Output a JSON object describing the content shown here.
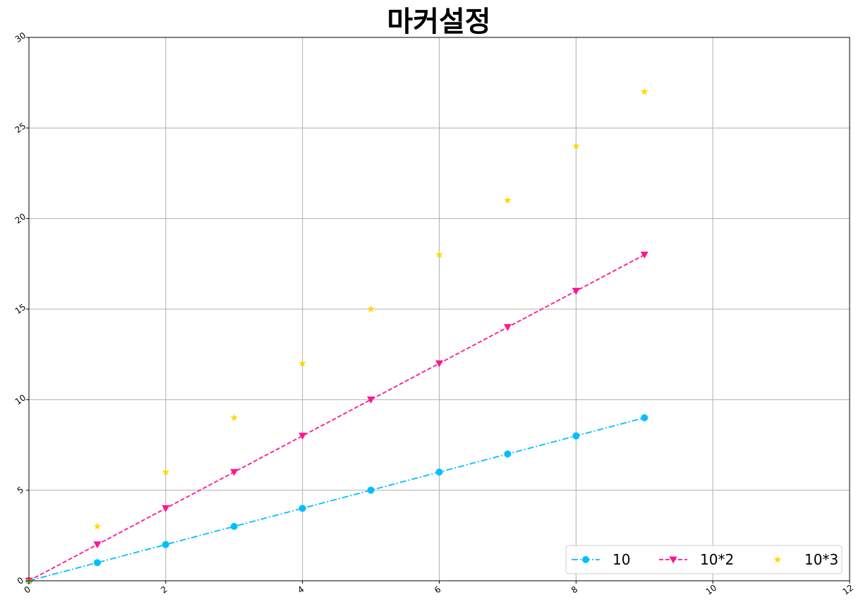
{
  "chart_data": {
    "type": "line",
    "title": "마커설정",
    "xlabel": "",
    "ylabel": "",
    "xlim": [
      0,
      12
    ],
    "ylim": [
      0,
      30
    ],
    "xticks": [
      0,
      2,
      4,
      6,
      8,
      10,
      12
    ],
    "yticks": [
      0,
      5,
      10,
      15,
      20,
      25,
      30
    ],
    "grid": true,
    "legend": {
      "placement": "bottom-right",
      "columns": 3
    },
    "x": [
      0,
      1,
      2,
      3,
      4,
      5,
      6,
      7,
      8,
      9
    ],
    "series": [
      {
        "name": "10",
        "values": [
          0,
          1,
          2,
          3,
          4,
          5,
          6,
          7,
          8,
          9
        ],
        "color": "#00bfff",
        "line_style": "dashdot",
        "marker": "circle"
      },
      {
        "name": "10*2",
        "values": [
          0,
          2,
          4,
          6,
          8,
          10,
          12,
          14,
          16,
          18
        ],
        "color": "#ff1493",
        "line_style": "dashed",
        "marker": "triangle-down"
      },
      {
        "name": "10*3",
        "values": [
          0,
          3,
          6,
          9,
          12,
          15,
          18,
          21,
          24,
          27
        ],
        "color": "#ffd700",
        "line_style": "none",
        "marker": "star"
      }
    ]
  }
}
